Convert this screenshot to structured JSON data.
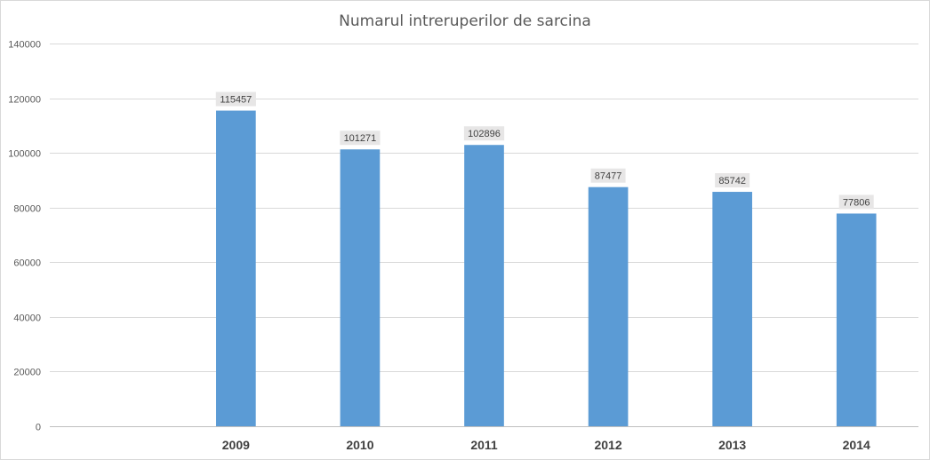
{
  "chart_data": {
    "type": "bar",
    "title": "Numarul intreruperilor de sarcina",
    "xlabel": "",
    "ylabel": "",
    "categories": [
      "",
      "2009",
      "2010",
      "2011",
      "2012",
      "2013",
      "2014"
    ],
    "values": [
      null,
      115457,
      101271,
      102896,
      87477,
      85742,
      77806
    ],
    "data_labels": [
      "",
      "115457",
      "101271",
      "102896",
      "87477",
      "85742",
      "77806"
    ],
    "ylim": [
      0,
      140000
    ],
    "yticks": [
      0,
      20000,
      40000,
      60000,
      80000,
      100000,
      120000,
      140000
    ],
    "ytick_labels": [
      "0",
      "20000",
      "40000",
      "60000",
      "80000",
      "100000",
      "120000",
      "140000"
    ],
    "grid": true,
    "legend": "none",
    "bar_color": "#5b9bd5",
    "label_bg_color": "#e7e6e6"
  }
}
